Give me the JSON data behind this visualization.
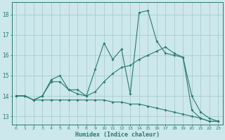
{
  "title": "",
  "xlabel": "Humidex (Indice chaleur)",
  "background_color": "#cce8ec",
  "grid_color": "#aacccc",
  "line_color": "#2a7a70",
  "xlim": [
    -0.5,
    23.5
  ],
  "ylim": [
    12.6,
    18.6
  ],
  "xticks": [
    0,
    1,
    2,
    3,
    4,
    5,
    6,
    7,
    8,
    9,
    10,
    11,
    12,
    13,
    14,
    15,
    16,
    17,
    18,
    19,
    20,
    21,
    22,
    23
  ],
  "yticks": [
    13,
    14,
    15,
    16,
    17,
    18
  ],
  "line1_x": [
    0,
    1,
    2,
    3,
    4,
    5,
    6,
    7,
    8,
    9,
    10,
    11,
    12,
    13,
    14,
    15,
    16,
    17,
    18,
    19,
    20,
    21,
    22,
    23
  ],
  "line1_y": [
    14.0,
    14.0,
    13.8,
    14.0,
    14.8,
    15.0,
    14.3,
    14.3,
    14.0,
    15.3,
    16.6,
    15.8,
    16.3,
    14.1,
    18.1,
    18.2,
    16.7,
    16.1,
    16.0,
    15.9,
    13.3,
    12.9,
    12.75,
    12.75
  ],
  "line2_x": [
    0,
    1,
    2,
    3,
    4,
    5,
    6,
    7,
    8,
    9,
    10,
    11,
    12,
    13,
    14,
    15,
    16,
    17,
    18,
    19,
    20,
    21,
    22,
    23
  ],
  "line2_y": [
    14.0,
    14.0,
    13.8,
    14.0,
    14.7,
    14.7,
    14.3,
    14.1,
    14.0,
    14.2,
    14.7,
    15.1,
    15.4,
    15.5,
    15.8,
    16.0,
    16.2,
    16.4,
    16.1,
    15.9,
    14.0,
    13.2,
    12.9,
    12.75
  ],
  "line3_x": [
    0,
    1,
    2,
    3,
    4,
    5,
    6,
    7,
    8,
    9,
    10,
    11,
    12,
    13,
    14,
    15,
    16,
    17,
    18,
    19,
    20,
    21,
    22,
    23
  ],
  "line3_y": [
    14.0,
    14.0,
    13.8,
    13.8,
    13.8,
    13.8,
    13.8,
    13.8,
    13.8,
    13.8,
    13.8,
    13.7,
    13.7,
    13.6,
    13.6,
    13.5,
    13.4,
    13.3,
    13.2,
    13.1,
    13.0,
    12.9,
    12.75,
    12.75
  ]
}
